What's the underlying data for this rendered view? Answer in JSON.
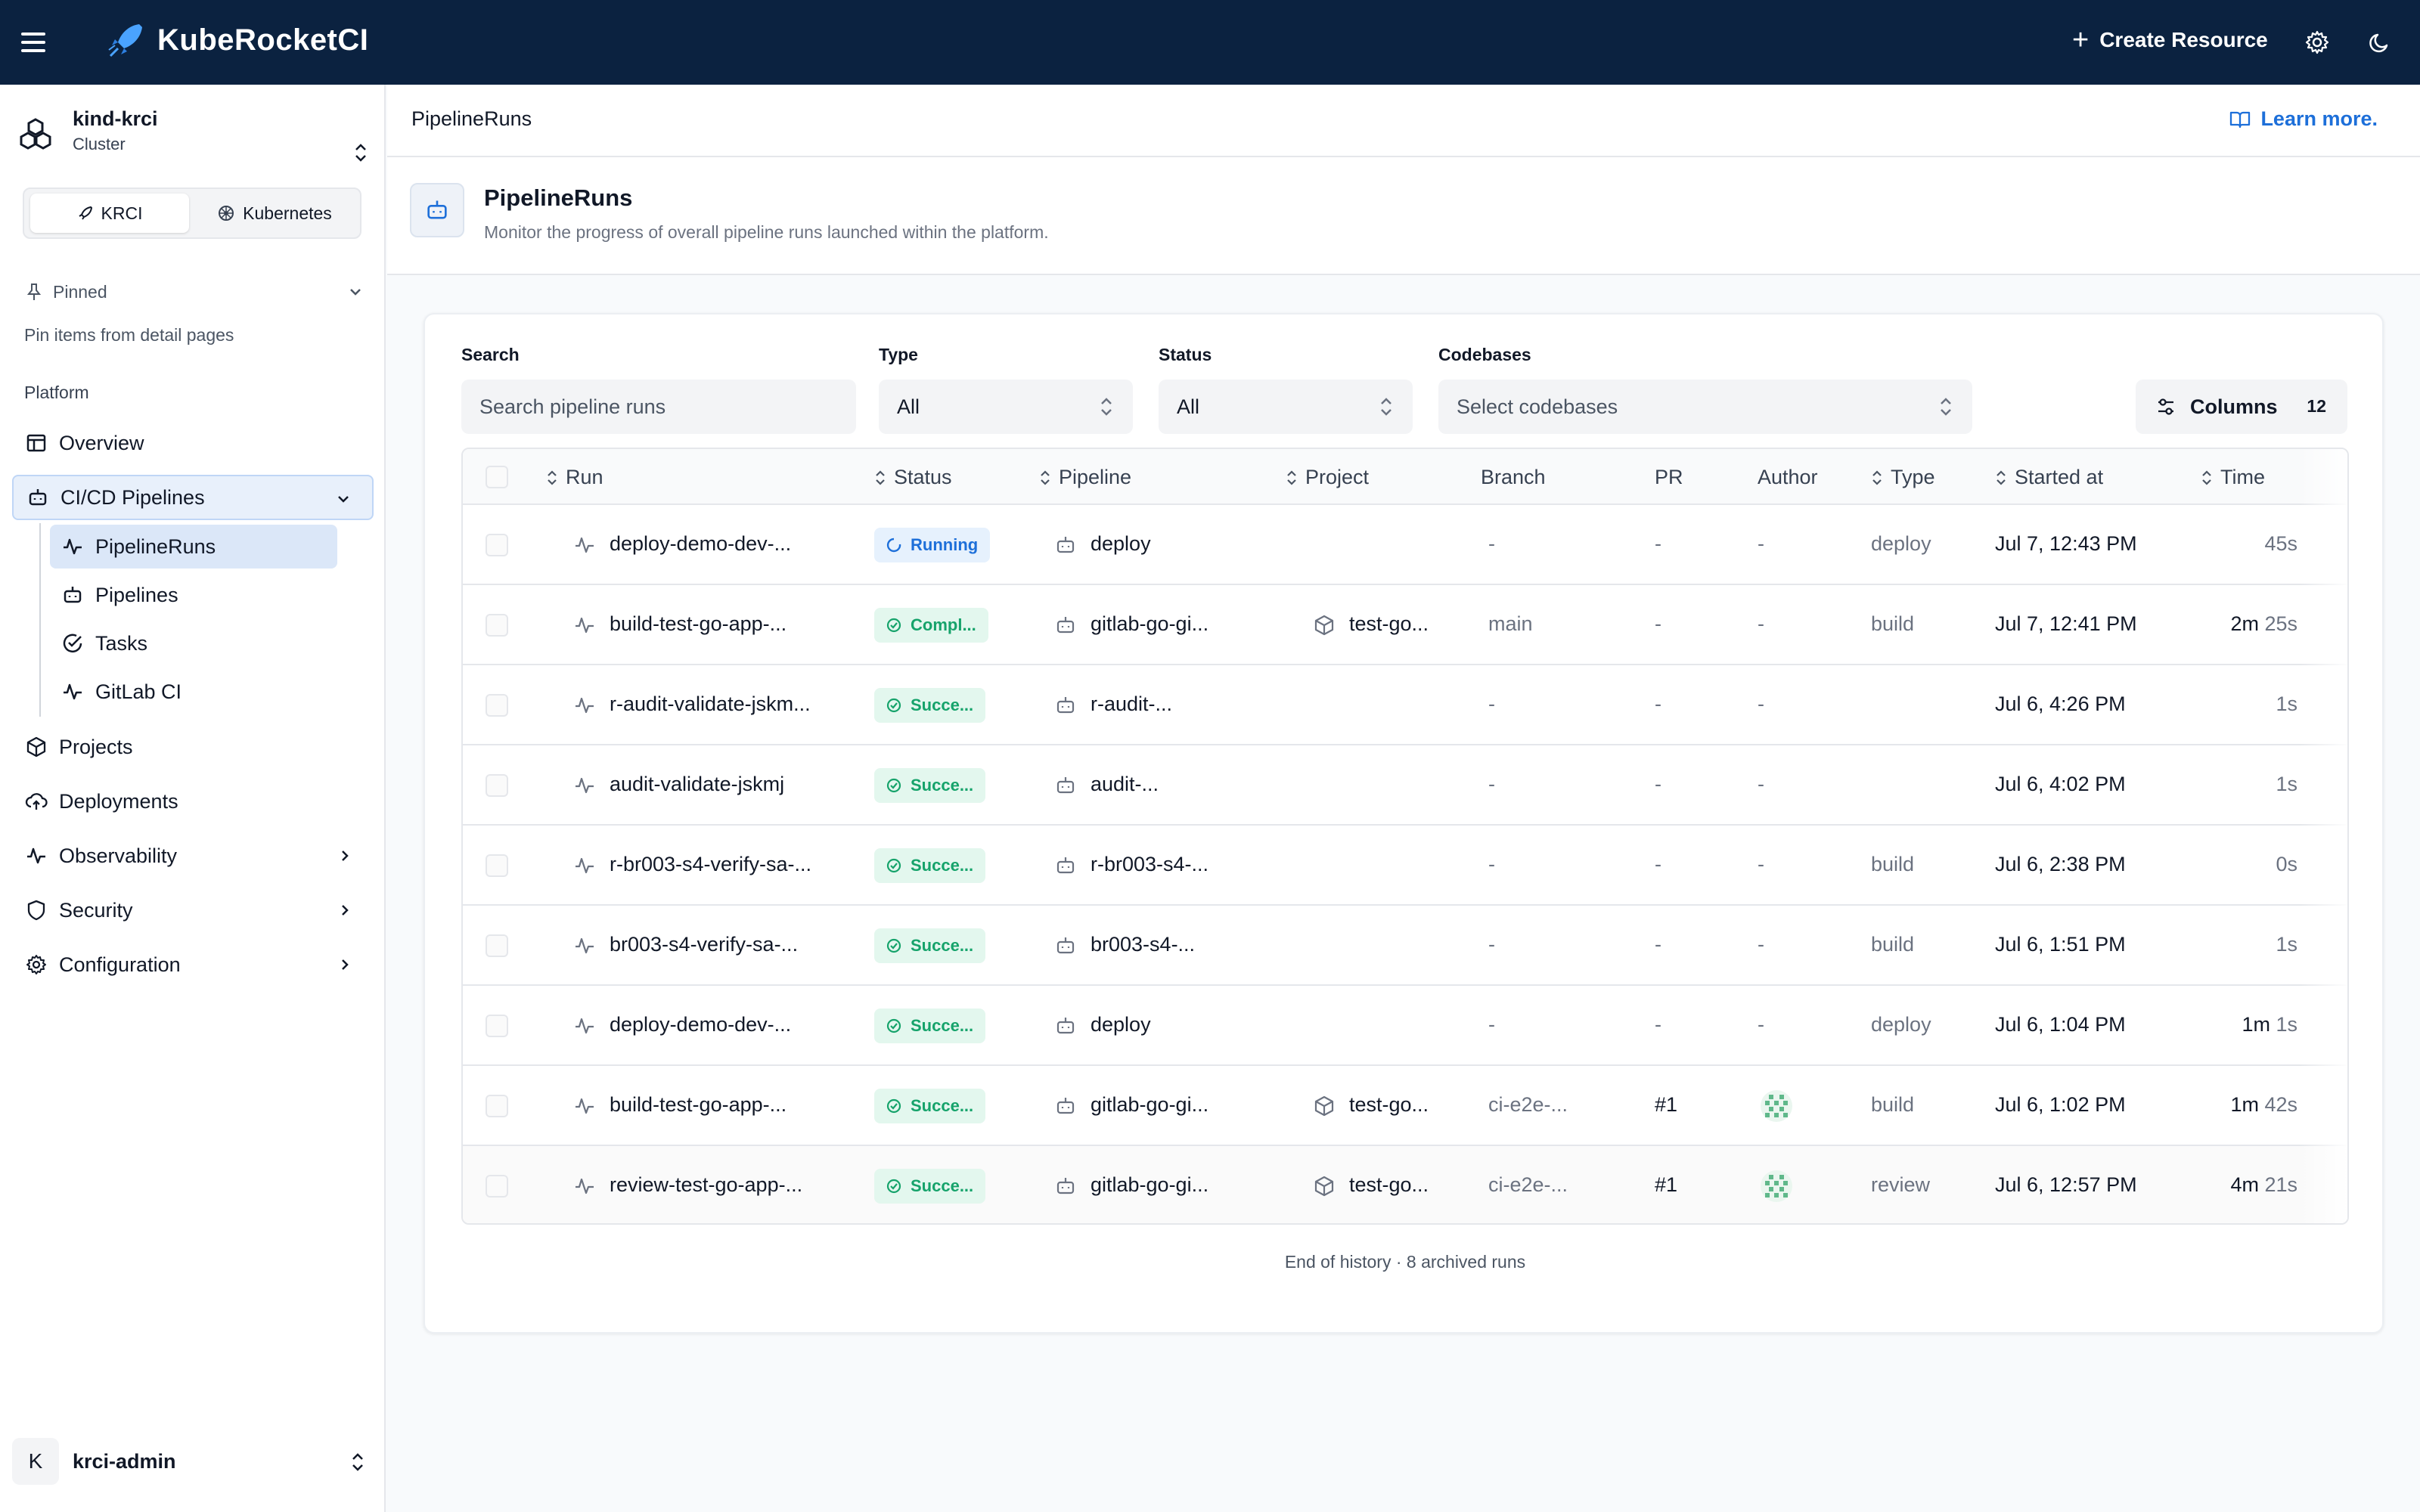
{
  "header": {
    "app_name": "KubeRocketCI",
    "create_label": "Create Resource"
  },
  "sidebar": {
    "cluster_name": "kind-krci",
    "cluster_sub": "Cluster",
    "mode_krci": "KRCI",
    "mode_kubernetes": "Kubernetes",
    "pinned_label": "Pinned",
    "pinned_hint": "Pin items from detail pages",
    "section_label": "Platform",
    "items": {
      "overview": "Overview",
      "cicd": "CI/CD Pipelines",
      "pipelineruns": "PipelineRuns",
      "pipelines": "Pipelines",
      "tasks": "Tasks",
      "gitlab": "GitLab CI",
      "projects": "Projects",
      "deployments": "Deployments",
      "observability": "Observability",
      "security": "Security",
      "configuration": "Configuration"
    },
    "user_initial": "K",
    "user_name": "krci-admin"
  },
  "breadcrumb": "PipelineRuns",
  "learn_more": "Learn more.",
  "page": {
    "title": "PipelineRuns",
    "subtitle": "Monitor the progress of overall pipeline runs launched within the platform."
  },
  "filters": {
    "search_label": "Search",
    "search_placeholder": "Search pipeline runs",
    "type_label": "Type",
    "type_value": "All",
    "status_label": "Status",
    "status_value": "All",
    "codebases_label": "Codebases",
    "codebases_placeholder": "Select codebases",
    "columns_label": "Columns",
    "columns_count": "12"
  },
  "table": {
    "headers": {
      "run": "Run",
      "status": "Status",
      "pipeline": "Pipeline",
      "project": "Project",
      "branch": "Branch",
      "pr": "PR",
      "author": "Author",
      "type": "Type",
      "started": "Started at",
      "time": "Time"
    },
    "rows": [
      {
        "run": "deploy-demo-dev-...",
        "status": "Running",
        "pipeline": "deploy",
        "project": "",
        "branch": "-",
        "pr": "-",
        "author": "-",
        "type": "deploy",
        "started": "Jul 7, 12:43 PM",
        "time_main": "",
        "time_sec": "45s"
      },
      {
        "run": "build-test-go-app-...",
        "status": "Compl...",
        "pipeline": "gitlab-go-gi...",
        "project": "test-go...",
        "branch": "main",
        "pr": "-",
        "author": "-",
        "type": "build",
        "started": "Jul 7, 12:41 PM",
        "time_main": "2m ",
        "time_sec": "25s"
      },
      {
        "run": "r-audit-validate-jskm...",
        "status": "Succe...",
        "pipeline": "r-audit-...",
        "project": "",
        "branch": "-",
        "pr": "-",
        "author": "-",
        "type": "",
        "started": "Jul 6, 4:26 PM",
        "time_main": "",
        "time_sec": "1s"
      },
      {
        "run": "audit-validate-jskmj",
        "status": "Succe...",
        "pipeline": "audit-...",
        "project": "",
        "branch": "-",
        "pr": "-",
        "author": "-",
        "type": "",
        "started": "Jul 6, 4:02 PM",
        "time_main": "",
        "time_sec": "1s"
      },
      {
        "run": "r-br003-s4-verify-sa-...",
        "status": "Succe...",
        "pipeline": "r-br003-s4-...",
        "project": "",
        "branch": "-",
        "pr": "-",
        "author": "-",
        "type": "build",
        "started": "Jul 6, 2:38 PM",
        "time_main": "",
        "time_sec": "0s"
      },
      {
        "run": "br003-s4-verify-sa-...",
        "status": "Succe...",
        "pipeline": "br003-s4-...",
        "project": "",
        "branch": "-",
        "pr": "-",
        "author": "-",
        "type": "build",
        "started": "Jul 6, 1:51 PM",
        "time_main": "",
        "time_sec": "1s"
      },
      {
        "run": "deploy-demo-dev-...",
        "status": "Succe...",
        "pipeline": "deploy",
        "project": "",
        "branch": "-",
        "pr": "-",
        "author": "-",
        "type": "deploy",
        "started": "Jul 6, 1:04 PM",
        "time_main": "1m ",
        "time_sec": "1s"
      },
      {
        "run": "build-test-go-app-...",
        "status": "Succe...",
        "pipeline": "gitlab-go-gi...",
        "project": "test-go...",
        "branch": "ci-e2e-...",
        "pr": "#1",
        "author": "",
        "type": "build",
        "started": "Jul 6, 1:02 PM",
        "time_main": "1m ",
        "time_sec": "42s"
      },
      {
        "run": "review-test-go-app-...",
        "status": "Succe...",
        "pipeline": "gitlab-go-gi...",
        "project": "test-go...",
        "branch": "ci-e2e-...",
        "pr": "#1",
        "author": "",
        "type": "review",
        "started": "Jul 6, 12:57 PM",
        "time_main": "4m ",
        "time_sec": "21s"
      }
    ]
  },
  "footer_note": "End of history · 8 archived runs"
}
